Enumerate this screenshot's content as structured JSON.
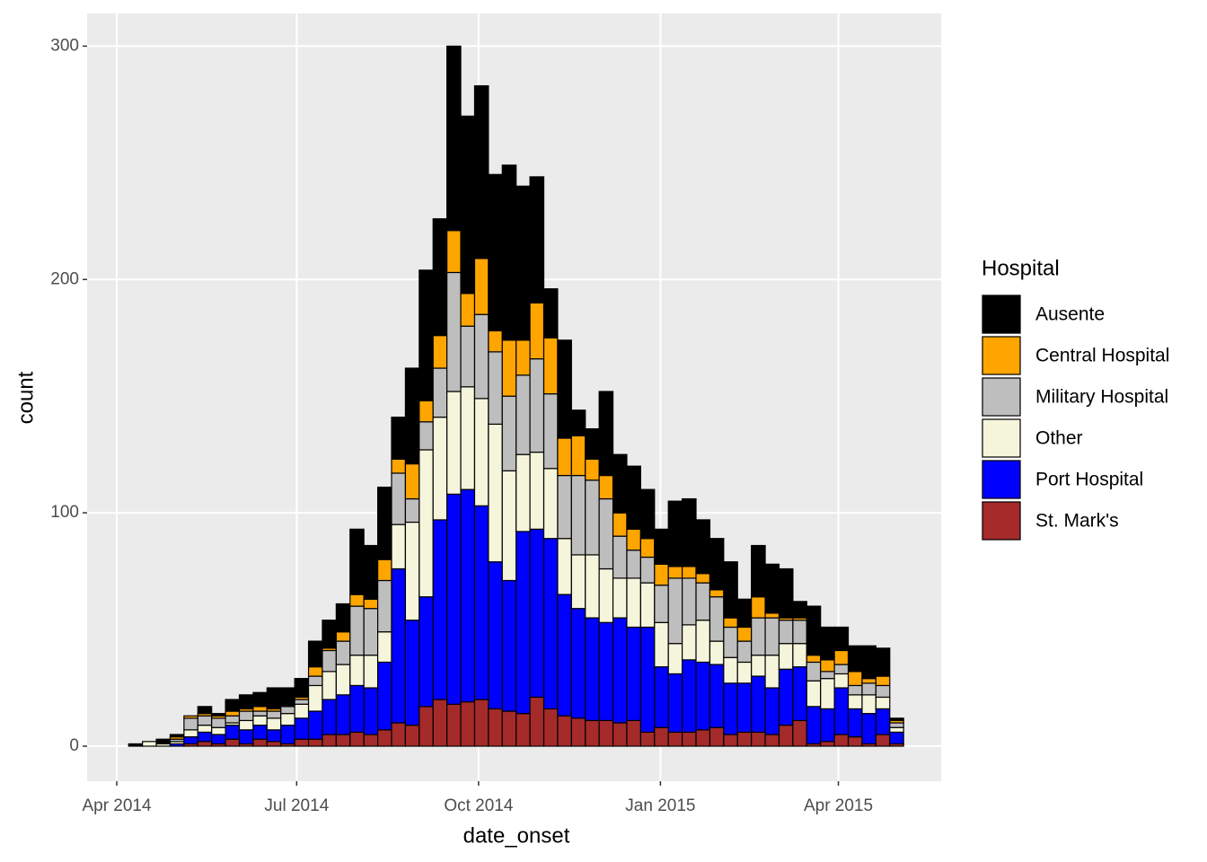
{
  "chart_data": {
    "type": "histogram",
    "x_label": "date_onset",
    "y_label": "count",
    "legend_title": "Hospital",
    "legend": "right",
    "grid": true,
    "bins": [
      "2014-04-07",
      "2014-04-14",
      "2014-04-21",
      "2014-04-28",
      "2014-05-05",
      "2014-05-12",
      "2014-05-19",
      "2014-05-26",
      "2014-06-02",
      "2014-06-09",
      "2014-06-16",
      "2014-06-23",
      "2014-06-30",
      "2014-07-07",
      "2014-07-14",
      "2014-07-21",
      "2014-07-28",
      "2014-08-04",
      "2014-08-11",
      "2014-08-18",
      "2014-08-25",
      "2014-09-01",
      "2014-09-08",
      "2014-09-15",
      "2014-09-22",
      "2014-09-29",
      "2014-10-06",
      "2014-10-13",
      "2014-10-20",
      "2014-10-27",
      "2014-11-03",
      "2014-11-10",
      "2014-11-17",
      "2014-11-24",
      "2014-12-01",
      "2014-12-08",
      "2014-12-15",
      "2014-12-22",
      "2014-12-29",
      "2015-01-05",
      "2015-01-12",
      "2015-01-19",
      "2015-01-26",
      "2015-02-02",
      "2015-02-09",
      "2015-02-16",
      "2015-02-23",
      "2015-03-02",
      "2015-03-09",
      "2015-03-16",
      "2015-03-23",
      "2015-03-30",
      "2015-04-06",
      "2015-04-13",
      "2015-04-20",
      "2015-04-27",
      "2015-05-04"
    ],
    "series": [
      {
        "name": "Ausente",
        "color": "#000000",
        "values": [
          1,
          0,
          2,
          1,
          0,
          3,
          1,
          5,
          6,
          6,
          9,
          8,
          8,
          11,
          12,
          12,
          28,
          23,
          31,
          18,
          41,
          56,
          50,
          79,
          76,
          74,
          67,
          75,
          66,
          54,
          21,
          42,
          11,
          13,
          36,
          25,
          27,
          21,
          15,
          28,
          29,
          23,
          22,
          24,
          12,
          22,
          21,
          21,
          7,
          21,
          14,
          10,
          11,
          14,
          12,
          1
        ]
      },
      {
        "name": "Central Hospital",
        "color": "#ffa500",
        "values": [
          0,
          0,
          0,
          1,
          1,
          1,
          1,
          2,
          1,
          2,
          1,
          0,
          1,
          4,
          1,
          4,
          5,
          4,
          9,
          6,
          15,
          9,
          14,
          18,
          14,
          24,
          9,
          24,
          15,
          24,
          24,
          16,
          17,
          9,
          10,
          10,
          9,
          8,
          9,
          5,
          5,
          4,
          3,
          4,
          6,
          9,
          2,
          1,
          1,
          3,
          5,
          6,
          6,
          2,
          4,
          1
        ]
      },
      {
        "name": "Military Hospital",
        "color": "#bebebe",
        "values": [
          0,
          0,
          0,
          1,
          5,
          4,
          4,
          3,
          4,
          2,
          3,
          3,
          2,
          4,
          9,
          10,
          21,
          20,
          22,
          22,
          10,
          12,
          21,
          51,
          26,
          36,
          31,
          32,
          34,
          40,
          32,
          27,
          34,
          32,
          30,
          18,
          12,
          11,
          16,
          28,
          20,
          16,
          19,
          13,
          9,
          16,
          16,
          10,
          10,
          8,
          3,
          4,
          4,
          5,
          5,
          2
        ]
      },
      {
        "name": "Other",
        "color": "#f5f5dc",
        "values": [
          0,
          2,
          1,
          1,
          3,
          3,
          3,
          1,
          4,
          4,
          5,
          5,
          6,
          11,
          12,
          13,
          13,
          14,
          13,
          19,
          42,
          63,
          44,
          44,
          44,
          46,
          59,
          47,
          33,
          33,
          30,
          24,
          23,
          27,
          23,
          17,
          21,
          19,
          19,
          13,
          15,
          18,
          10,
          11,
          9,
          9,
          14,
          11,
          10,
          11,
          13,
          6,
          6,
          8,
          5,
          2
        ]
      },
      {
        "name": "Port Hospital",
        "color": "#0000ff",
        "values": [
          0,
          0,
          0,
          1,
          3,
          4,
          4,
          6,
          6,
          6,
          5,
          8,
          9,
          12,
          15,
          17,
          20,
          20,
          29,
          66,
          45,
          47,
          77,
          90,
          91,
          83,
          63,
          56,
          78,
          72,
          73,
          52,
          47,
          44,
          42,
          45,
          40,
          45,
          26,
          25,
          31,
          29,
          27,
          22,
          21,
          24,
          20,
          24,
          23,
          16,
          14,
          20,
          12,
          13,
          11,
          5
        ]
      },
      {
        "name": "St. Mark's",
        "color": "#a52a2a",
        "values": [
          0,
          0,
          0,
          0,
          1,
          2,
          1,
          3,
          1,
          3,
          2,
          1,
          3,
          3,
          5,
          5,
          6,
          5,
          7,
          10,
          9,
          17,
          20,
          18,
          19,
          20,
          16,
          15,
          14,
          21,
          16,
          13,
          12,
          11,
          11,
          10,
          11,
          6,
          8,
          6,
          6,
          7,
          8,
          5,
          6,
          6,
          5,
          9,
          11,
          1,
          2,
          5,
          4,
          1,
          5,
          1
        ]
      }
    ],
    "xlim": [
      "2014-03-17",
      "2015-05-23"
    ],
    "xticks": [
      {
        "value": "2014-04-01",
        "label": "Apr 2014"
      },
      {
        "value": "2014-07-01",
        "label": "Jul 2014"
      },
      {
        "value": "2014-10-01",
        "label": "Oct 2014"
      },
      {
        "value": "2015-01-01",
        "label": "Jan 2015"
      },
      {
        "value": "2015-04-01",
        "label": "Apr 2015"
      }
    ],
    "ylim": [
      -15,
      314
    ],
    "yticks": [
      0,
      100,
      200,
      300
    ]
  }
}
